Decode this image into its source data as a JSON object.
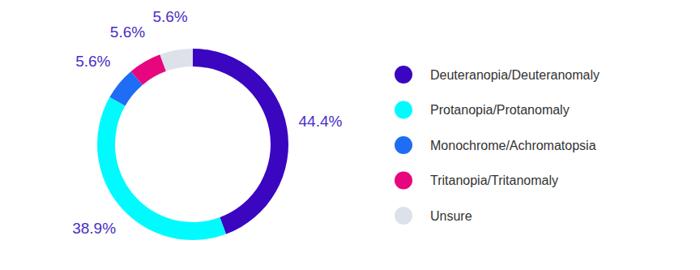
{
  "chart_data": {
    "type": "donut",
    "categories": [
      "Deuteranopia/Deuteranomaly",
      "Protanopia/Protanomaly",
      "Monochrome/Achromatopsia",
      "Tritanopia/Tritanomaly",
      "Unsure"
    ],
    "values": [
      44.4,
      38.9,
      5.6,
      5.6,
      5.6
    ],
    "value_labels": [
      "44.4%",
      "38.9%",
      "5.6%",
      "5.6%",
      "5.6%"
    ],
    "colors": [
      "#3a06c0",
      "#00fbff",
      "#1f6cf5",
      "#e8067f",
      "#dde1ea"
    ],
    "data_labels": true,
    "legend": "right"
  }
}
